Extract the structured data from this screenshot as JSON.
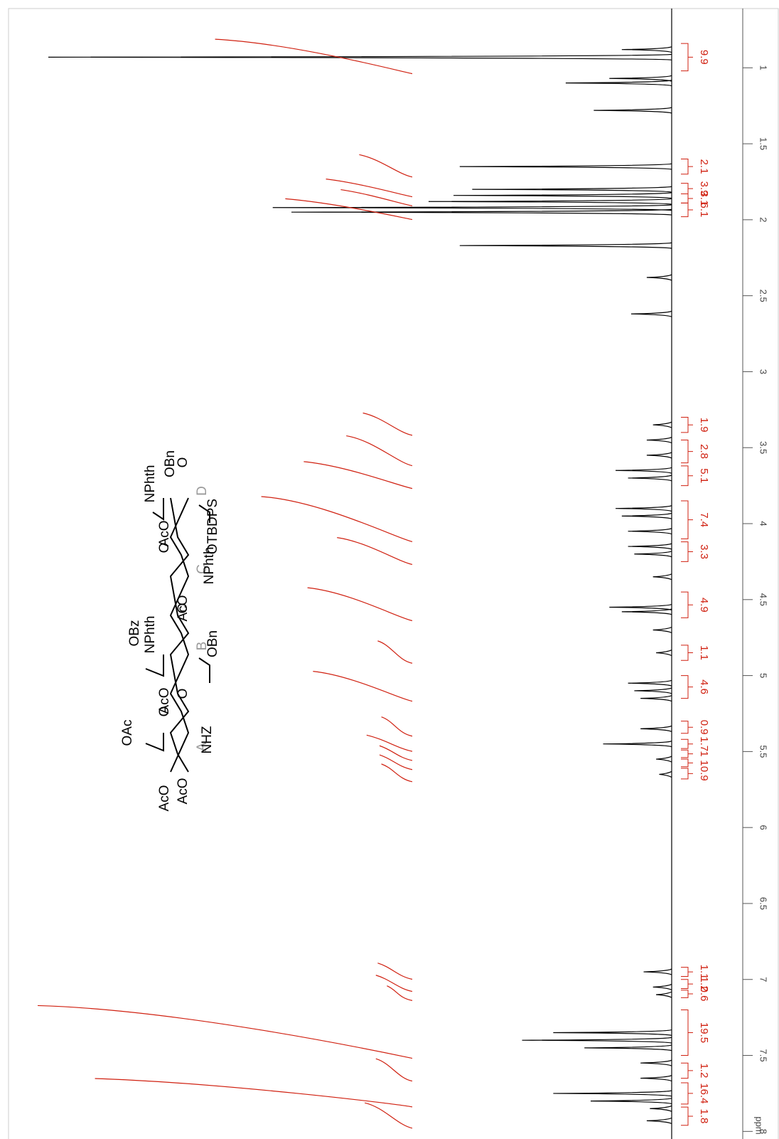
{
  "chart_data": {
    "type": "nmr",
    "x_label": "ppm",
    "xlim": [
      0.61,
      8.05
    ],
    "xticks": [
      1,
      1.5,
      2,
      2.5,
      3,
      3.5,
      4,
      4.5,
      5,
      5.5,
      6,
      6.5,
      7,
      7.5,
      8
    ],
    "ylim": [
      0,
      100
    ],
    "color": "#000000",
    "integral_color": "#d02010",
    "peaks": {
      "x": [
        0.88,
        0.93,
        1.07,
        1.1,
        1.28,
        1.65,
        1.8,
        1.84,
        1.88,
        1.92,
        1.95,
        2.17,
        2.38,
        2.62,
        3.35,
        3.45,
        3.55,
        3.65,
        3.7,
        3.9,
        3.95,
        4.05,
        4.15,
        4.2,
        4.35,
        4.55,
        4.58,
        4.7,
        4.85,
        5.05,
        5.1,
        5.15,
        5.35,
        5.45,
        5.55,
        5.65,
        6.95,
        7.05,
        7.1,
        7.35,
        7.4,
        7.45,
        7.55,
        7.65,
        7.75,
        7.8,
        7.85,
        7.93
      ],
      "values": [
        8,
        100,
        10,
        17,
        12.5,
        34,
        32,
        35,
        39,
        64,
        61,
        34,
        4,
        6.5,
        3,
        4,
        4,
        9,
        7,
        9,
        8,
        7,
        7,
        6,
        3,
        10,
        8,
        3,
        2.5,
        7,
        6,
        5,
        5,
        11,
        2.5,
        2,
        4.5,
        3,
        2.5,
        19,
        24,
        14,
        5,
        5,
        19,
        13,
        3.5,
        4
      ]
    },
    "integrals": [
      {
        "value": 9.9,
        "from": 0.84,
        "to": 1.02
      },
      {
        "value": 2.1,
        "from": 1.6,
        "to": 1.7
      },
      {
        "value": 3.9,
        "from": 1.76,
        "to": 1.83
      },
      {
        "value": 3.1,
        "from": 1.83,
        "to": 1.89
      },
      {
        "value": 6.1,
        "from": 1.89,
        "to": 1.98
      },
      {
        "value": 1.9,
        "from": 3.3,
        "to": 3.4
      },
      {
        "value": 2.8,
        "from": 3.45,
        "to": 3.6
      },
      {
        "value": 5.1,
        "from": 3.62,
        "to": 3.75
      },
      {
        "value": 7.4,
        "from": 3.85,
        "to": 4.1
      },
      {
        "value": 3.3,
        "from": 4.12,
        "to": 4.25
      },
      {
        "value": 4.9,
        "from": 4.45,
        "to": 4.62
      },
      {
        "value": 1.1,
        "from": 4.8,
        "to": 4.9
      },
      {
        "value": 4.6,
        "from": 5.0,
        "to": 5.15
      },
      {
        "value": 0.9,
        "from": 5.3,
        "to": 5.38
      },
      {
        "value": 1.7,
        "from": 5.42,
        "to": 5.48
      },
      {
        "value": 1.0,
        "from": 5.49,
        "to": 5.54
      },
      {
        "value": 1.0,
        "from": 5.55,
        "to": 5.6
      },
      {
        "value": 0.9,
        "from": 5.61,
        "to": 5.68
      },
      {
        "value": 1.1,
        "from": 6.92,
        "to": 6.98
      },
      {
        "value": 1.2,
        "from": 7.0,
        "to": 7.06
      },
      {
        "value": 0.6,
        "from": 7.07,
        "to": 7.12
      },
      {
        "value": 19.5,
        "from": 7.2,
        "to": 7.5
      },
      {
        "value": 1.2,
        "from": 7.55,
        "to": 7.65
      },
      {
        "value": 16.4,
        "from": 7.68,
        "to": 7.82
      },
      {
        "value": 1.8,
        "from": 7.84,
        "to": 7.96
      }
    ]
  },
  "structure": {
    "labels": [
      "AcO",
      "AcO",
      "OAc",
      "A",
      "NHZ",
      "AcO",
      "O",
      "O",
      "NPhth",
      "B",
      "OBn",
      "O",
      "AcO",
      "OBz",
      "C",
      "NPhth",
      "O",
      "AcO",
      "NPhth",
      "D",
      "OBn",
      "OTBDPS",
      "O"
    ]
  }
}
